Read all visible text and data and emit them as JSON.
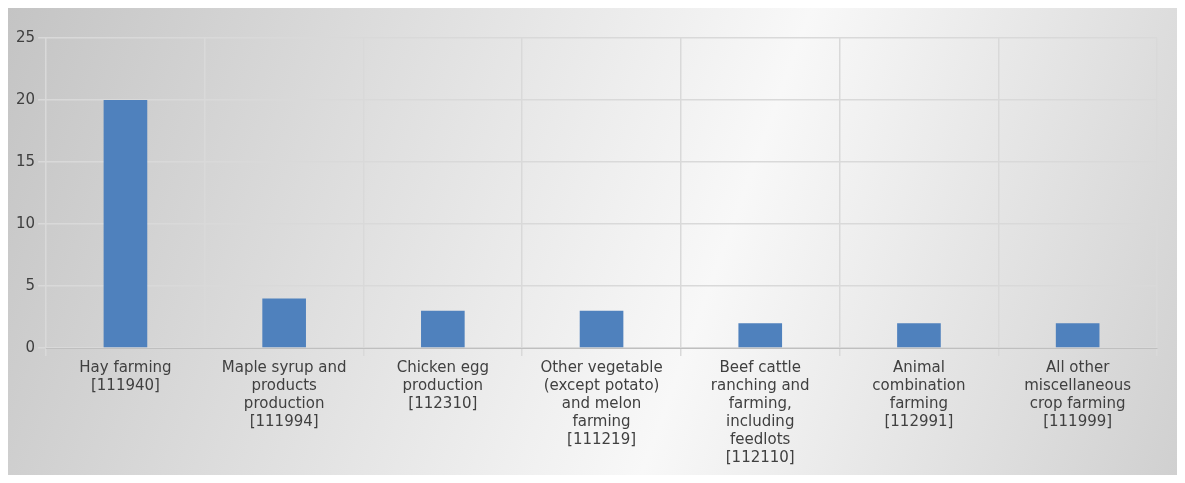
{
  "chart_data": {
    "type": "bar",
    "categories": [
      "Hay farming [111940]",
      "Maple syrup and products production [111994]",
      "Chicken egg production [112310]",
      "Other vegetable (except potato) and melon farming [111219]",
      "Beef cattle ranching and farming, including feedlots [112110]",
      "Animal combination farming [112991]",
      "All other miscellaneous crop farming [111999]"
    ],
    "values": [
      20,
      4,
      3,
      3,
      2,
      2,
      2
    ],
    "color": "#4f81bd",
    "ylim": [
      0,
      25
    ],
    "yticks": [
      0,
      5,
      10,
      15,
      20,
      25
    ],
    "grid": true,
    "legend": false
  }
}
